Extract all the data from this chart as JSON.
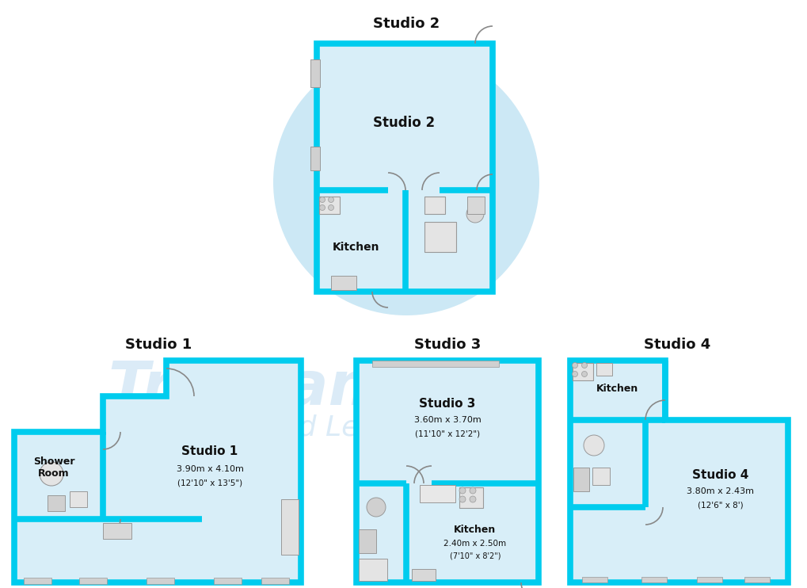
{
  "bg_color": "#ffffff",
  "wall_color": "#00ccee",
  "room_fill": "#d8eef8",
  "wall_lw": 5.5,
  "inner_lw": 1.3,
  "title_color": "#111111",
  "label_color": "#111111",
  "watermark_color": "#b8d8f0",
  "fixture_fill": "#e4e4e4",
  "fixture_edge": "#999999",
  "studio1_title": "Studio 1",
  "studio2_title": "Studio 2",
  "studio3_title": "Studio 3",
  "studio4_title": "Studio 4",
  "kitchen_label": "Kitchen",
  "shower_label": "Shower\nRoom",
  "s1_dims": "3.90m x 4.10m",
  "s1_dims2": "(12'10\" x 13'5\")",
  "s3_dims": "3.60m x 3.70m",
  "s3_dims2": "(11'10\" x 12'2\")",
  "s3_kit_dims": "2.40m x 2.50m",
  "s3_kit_dims2": "(7'10\" x 8'2\")",
  "s4_dims": "3.80m x 2.43m",
  "s4_dims2": "(12'6\" x 8')"
}
